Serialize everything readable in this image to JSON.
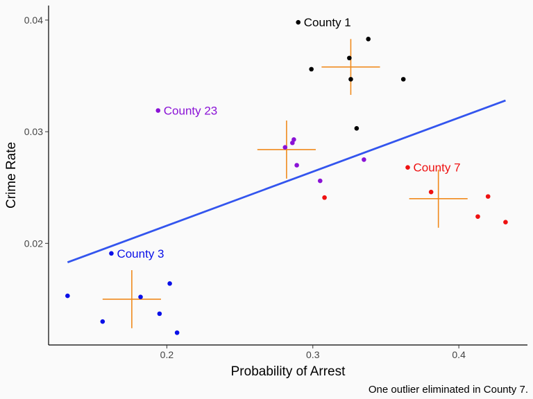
{
  "chart_data": {
    "type": "scatter",
    "xlabel": "Probability of Arrest",
    "ylabel": "Crime Rate",
    "caption": "One outlier eliminated in County 7.",
    "xlim": [
      0.119,
      0.447
    ],
    "ylim": [
      0.0109,
      0.0413
    ],
    "x_ticks": [
      {
        "value": 0.2,
        "label": "0.2"
      },
      {
        "value": 0.3,
        "label": "0.3"
      },
      {
        "value": 0.4,
        "label": "0.4"
      }
    ],
    "y_ticks": [
      {
        "value": 0.02,
        "label": "0.02"
      },
      {
        "value": 0.03,
        "label": "0.03"
      },
      {
        "value": 0.04,
        "label": "0.04"
      }
    ],
    "grid": false,
    "series": [
      {
        "color": "#000000",
        "points": [
          [
            0.29,
            0.0398
          ],
          [
            0.338,
            0.0383
          ],
          [
            0.325,
            0.0366
          ],
          [
            0.299,
            0.0356
          ],
          [
            0.326,
            0.0347
          ],
          [
            0.362,
            0.0347
          ],
          [
            0.33,
            0.0303
          ]
        ],
        "label": {
          "text": "County 1",
          "x": 0.29,
          "y": 0.0398
        },
        "mean": {
          "x": 0.326,
          "y": 0.0358,
          "xerr": 0.02,
          "yerr": 0.0025
        }
      },
      {
        "color": "#8a12d6",
        "points": [
          [
            0.194,
            0.0319
          ],
          [
            0.287,
            0.0293
          ],
          [
            0.286,
            0.029
          ],
          [
            0.281,
            0.0286
          ],
          [
            0.335,
            0.0275
          ],
          [
            0.289,
            0.027
          ],
          [
            0.305,
            0.0256
          ]
        ],
        "label": {
          "text": "County 23",
          "x": 0.194,
          "y": 0.0319
        },
        "mean": {
          "x": 0.282,
          "y": 0.0284,
          "xerr": 0.02,
          "yerr": 0.0026
        }
      },
      {
        "color": "#ee1111",
        "points": [
          [
            0.365,
            0.0268
          ],
          [
            0.381,
            0.0246
          ],
          [
            0.42,
            0.0242
          ],
          [
            0.308,
            0.0241
          ],
          [
            0.413,
            0.0224
          ],
          [
            0.432,
            0.0219
          ]
        ],
        "label": {
          "text": "County 7",
          "x": 0.365,
          "y": 0.0268
        },
        "mean": {
          "x": 0.386,
          "y": 0.024,
          "xerr": 0.02,
          "yerr": 0.0026
        }
      },
      {
        "color": "#0a10e8",
        "points": [
          [
            0.162,
            0.0191
          ],
          [
            0.132,
            0.0153
          ],
          [
            0.202,
            0.0164
          ],
          [
            0.182,
            0.0152
          ],
          [
            0.195,
            0.0137
          ],
          [
            0.156,
            0.013
          ],
          [
            0.207,
            0.012
          ]
        ],
        "label": {
          "text": "County 3",
          "x": 0.162,
          "y": 0.0191
        },
        "mean": {
          "x": 0.176,
          "y": 0.015,
          "xerr": 0.02,
          "yerr": 0.0026
        }
      }
    ],
    "regression_line": {
      "color": "#3355ee",
      "x": [
        0.132,
        0.432
      ],
      "y": [
        0.0183,
        0.0328
      ]
    },
    "mean_marker_color": "#f08a1c"
  }
}
